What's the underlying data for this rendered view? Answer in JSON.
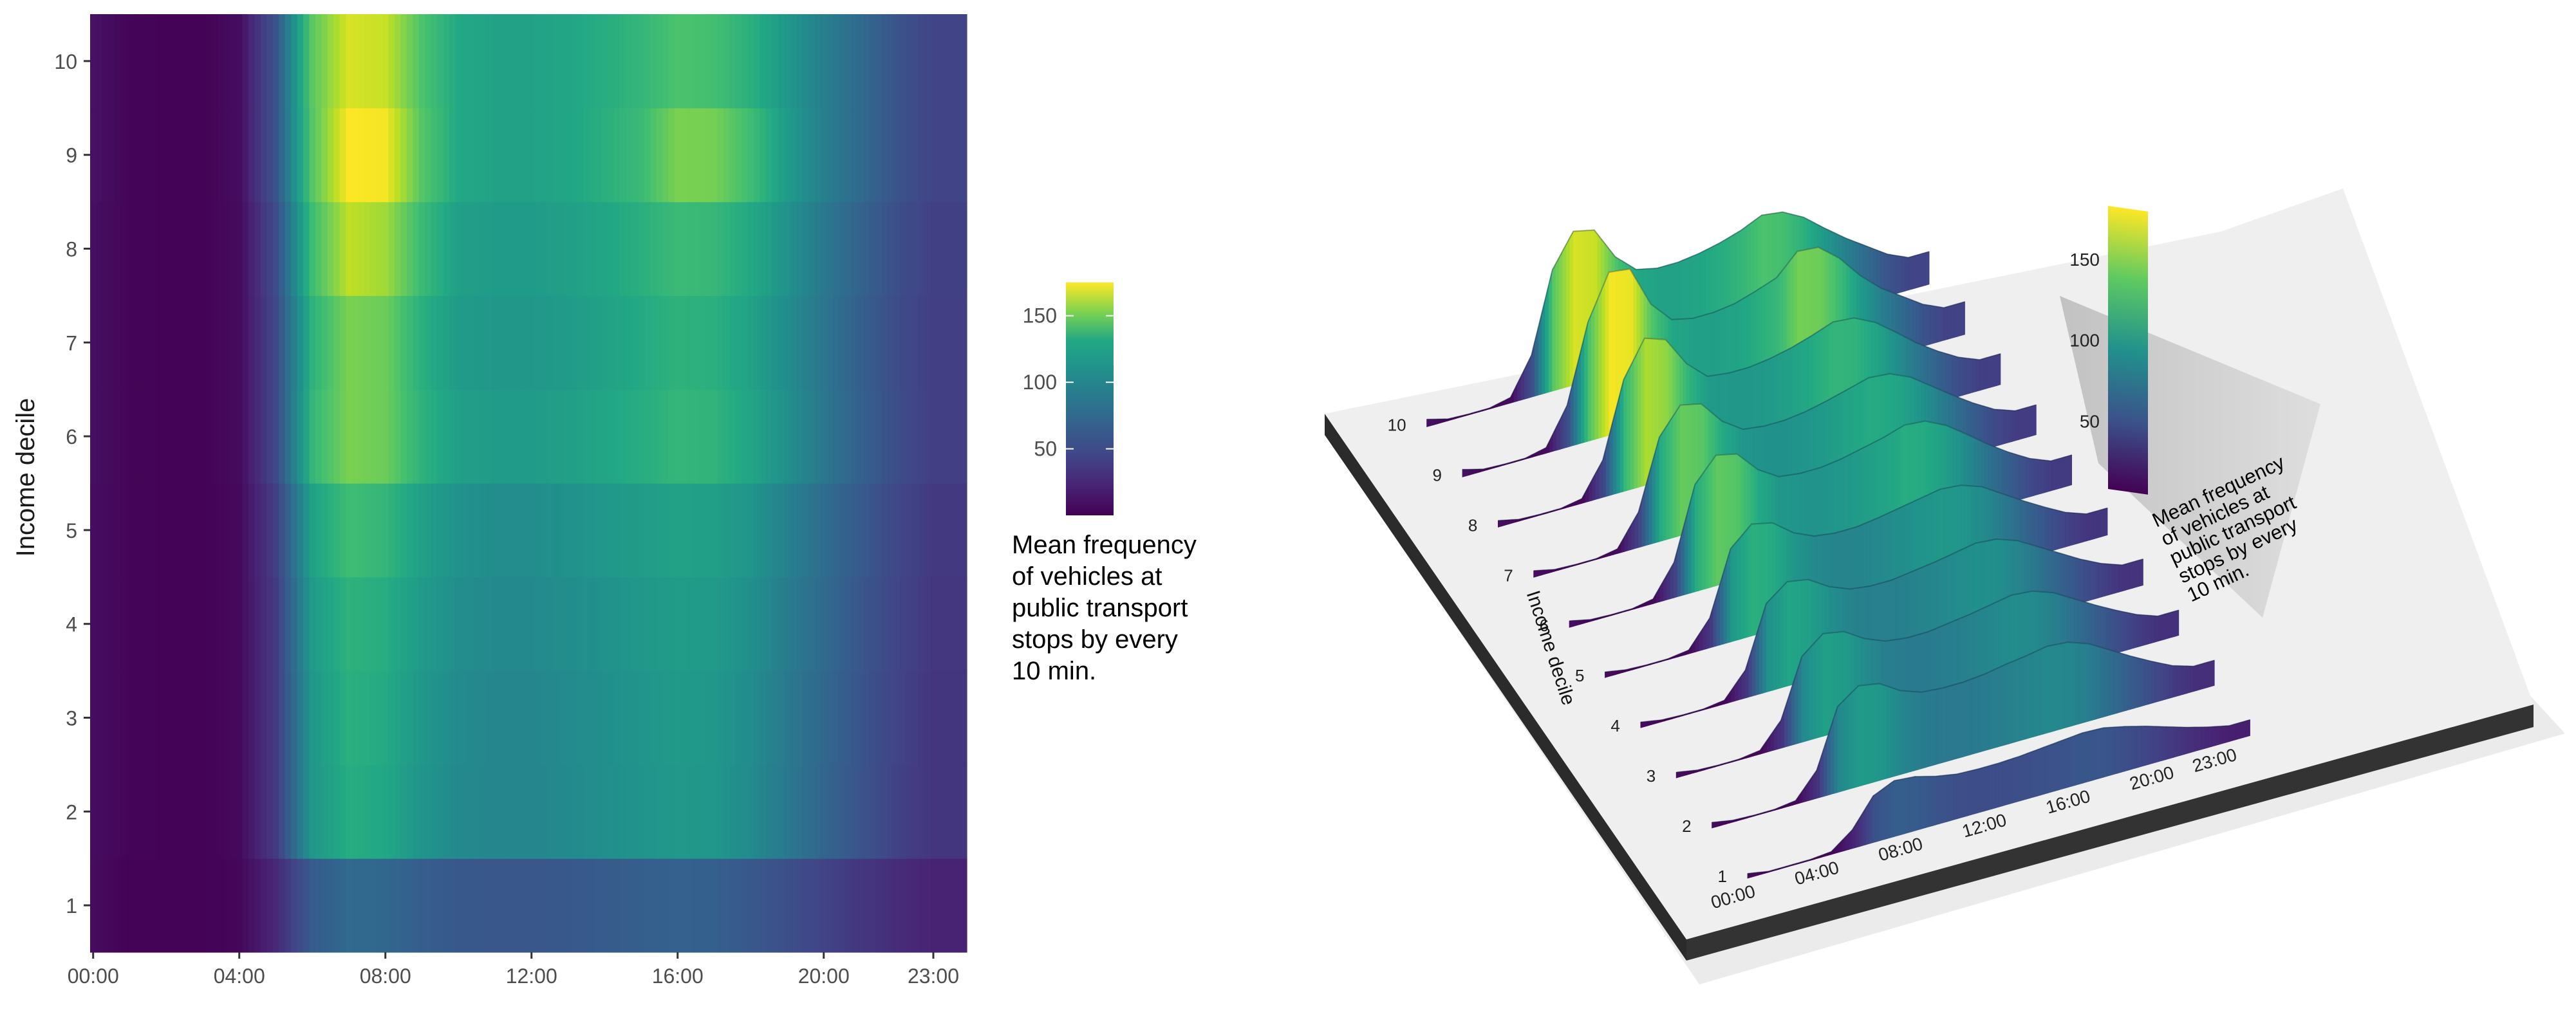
{
  "chart_data": [
    {
      "type": "heatmap",
      "title": "",
      "xlabel": "",
      "ylabel": "Income decile",
      "x_ticks": [
        "00:00",
        "04:00",
        "08:00",
        "12:00",
        "16:00",
        "20:00",
        "23:00"
      ],
      "y_ticks": [
        "1",
        "2",
        "3",
        "4",
        "5",
        "6",
        "7",
        "8",
        "9",
        "10"
      ],
      "x_range": [
        "00:00",
        "23:50"
      ],
      "time_step": "10 min",
      "colorscale": "viridis",
      "colorbar": {
        "title": "Mean frequency\nof vehicles at\npublic transport\nstops by every\n10 min.",
        "range": [
          0,
          175
        ],
        "ticks": [
          50,
          100,
          150
        ]
      },
      "hourly_profile": {
        "hours": [
          "00:00",
          "01:00",
          "02:00",
          "03:00",
          "04:00",
          "05:00",
          "06:00",
          "07:00",
          "08:00",
          "09:00",
          "10:00",
          "11:00",
          "12:00",
          "13:00",
          "14:00",
          "15:00",
          "16:00",
          "17:00",
          "18:00",
          "19:00",
          "20:00",
          "21:00",
          "22:00",
          "23:00"
        ],
        "decile_10": [
          8,
          2,
          1,
          1,
          6,
          45,
          130,
          165,
          160,
          125,
          105,
          100,
          100,
          103,
          108,
          115,
          125,
          122,
          110,
          92,
          75,
          60,
          45,
          35
        ],
        "decile_9": [
          8,
          2,
          1,
          1,
          6,
          45,
          128,
          175,
          172,
          128,
          105,
          100,
          100,
          103,
          110,
          118,
          140,
          138,
          120,
          95,
          75,
          60,
          45,
          35
        ],
        "decile_8": [
          7,
          2,
          1,
          1,
          5,
          40,
          120,
          158,
          150,
          118,
          98,
          95,
          95,
          98,
          103,
          110,
          118,
          116,
          105,
          88,
          70,
          55,
          42,
          33
        ],
        "decile_7": [
          7,
          2,
          1,
          1,
          5,
          38,
          112,
          140,
          135,
          110,
          95,
          92,
          92,
          95,
          100,
          106,
          112,
          110,
          100,
          84,
          68,
          53,
          40,
          32
        ],
        "decile_6": [
          7,
          2,
          1,
          1,
          5,
          38,
          115,
          140,
          135,
          112,
          98,
          95,
          95,
          98,
          103,
          108,
          115,
          113,
          102,
          86,
          69,
          54,
          41,
          32
        ],
        "decile_5": [
          6,
          2,
          1,
          1,
          4,
          32,
          100,
          120,
          115,
          98,
          88,
          85,
          85,
          88,
          92,
          96,
          100,
          98,
          90,
          76,
          62,
          49,
          37,
          29
        ],
        "decile_4": [
          6,
          2,
          1,
          1,
          4,
          30,
          95,
          112,
          108,
          94,
          85,
          82,
          82,
          85,
          88,
          92,
          96,
          94,
          86,
          73,
          60,
          47,
          36,
          28
        ],
        "decile_3": [
          6,
          2,
          1,
          1,
          4,
          30,
          92,
          110,
          106,
          92,
          83,
          80,
          80,
          83,
          86,
          90,
          94,
          92,
          84,
          71,
          58,
          46,
          35,
          27
        ],
        "decile_2": [
          6,
          2,
          1,
          1,
          4,
          30,
          92,
          108,
          104,
          90,
          82,
          80,
          80,
          82,
          86,
          89,
          93,
          91,
          83,
          70,
          57,
          45,
          34,
          27
        ],
        "decile_1": [
          5,
          1,
          1,
          1,
          3,
          20,
          50,
          60,
          58,
          52,
          48,
          47,
          47,
          48,
          50,
          52,
          54,
          53,
          48,
          42,
          35,
          28,
          22,
          17
        ]
      }
    },
    {
      "type": "surface3d",
      "ylabel": "Income decile",
      "x_ticks": [
        "00:00",
        "04:00",
        "08:00",
        "12:00",
        "16:00",
        "20:00",
        "23:00"
      ],
      "y_ticks": [
        "1",
        "2",
        "3",
        "4",
        "5",
        "6",
        "7",
        "8",
        "9",
        "10"
      ],
      "colorscale": "viridis",
      "colorbar": {
        "title": "Mean frequency\nof vehicles at\npublic transport\nstops by every\n10 min.",
        "ticks": [
          50,
          100,
          150
        ]
      },
      "same_data_as": "heatmap"
    }
  ]
}
